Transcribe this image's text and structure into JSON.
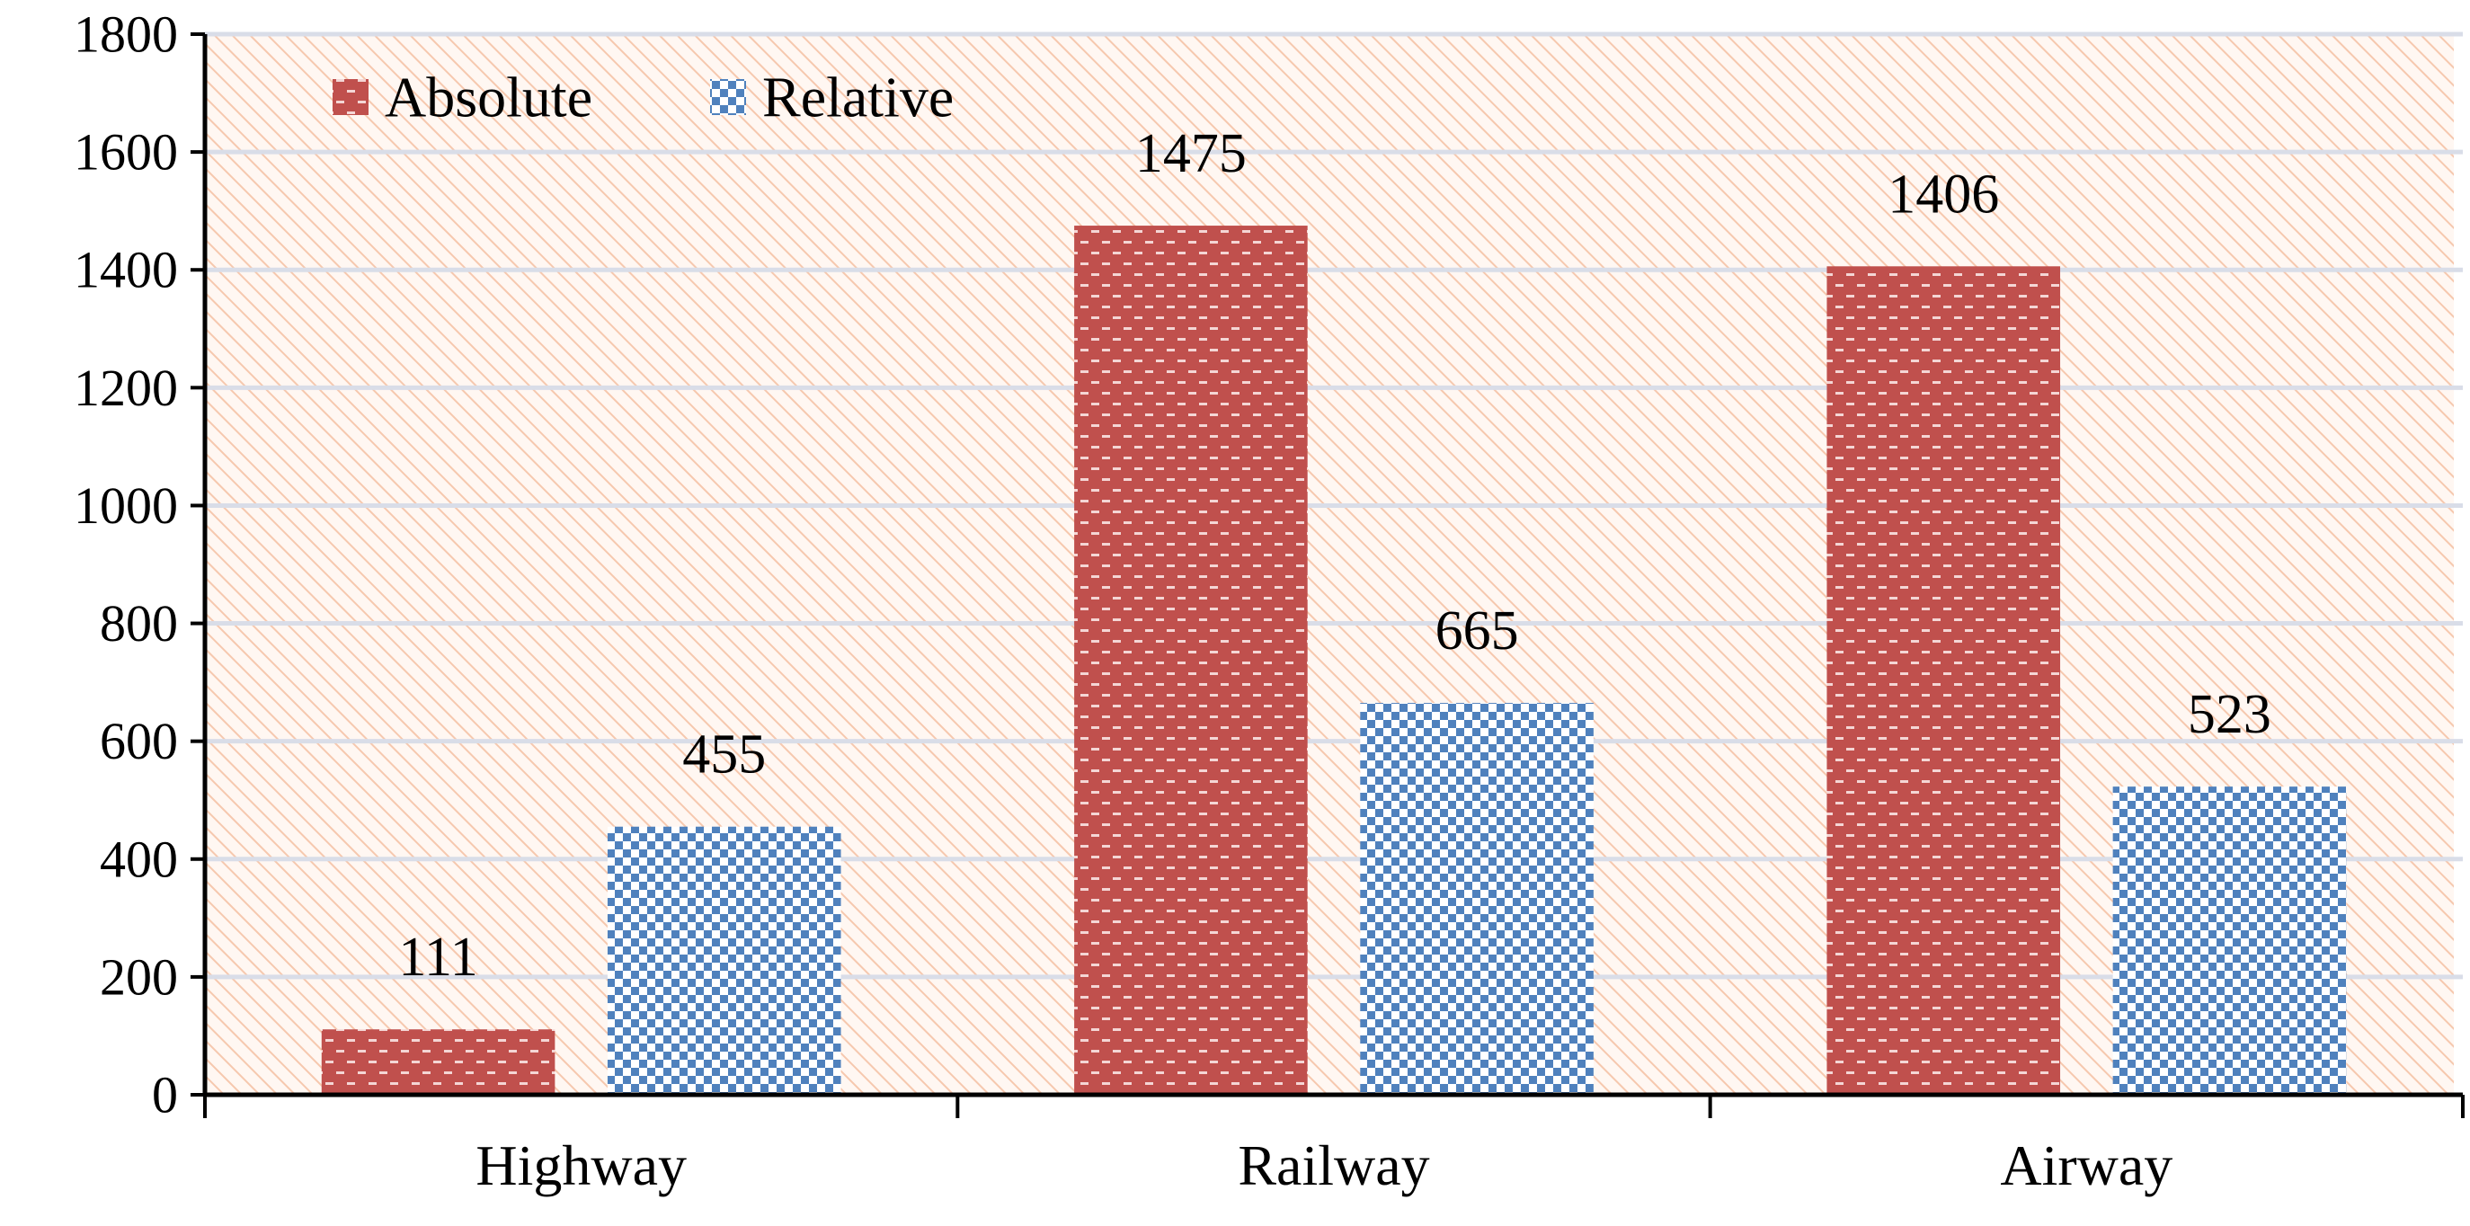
{
  "chart_data": {
    "type": "bar",
    "title": "",
    "xlabel": "",
    "ylabel": "",
    "categories": [
      "Highway",
      "Railway",
      "Airway"
    ],
    "series": [
      {
        "name": "Absolute",
        "values": [
          111,
          1475,
          1406
        ],
        "color": "#c0504d",
        "pattern": "dashed-checker"
      },
      {
        "name": "Relative",
        "values": [
          455,
          665,
          523
        ],
        "color": "#4f81bd",
        "pattern": "checker"
      }
    ],
    "ylim": [
      0,
      1800
    ],
    "yticks": [
      0,
      200,
      400,
      600,
      800,
      1000,
      1200,
      1400,
      1600,
      1800
    ],
    "grid": true,
    "legend_position": "top-left",
    "data_labels": true,
    "background": "diagonal-hatch-peach"
  }
}
